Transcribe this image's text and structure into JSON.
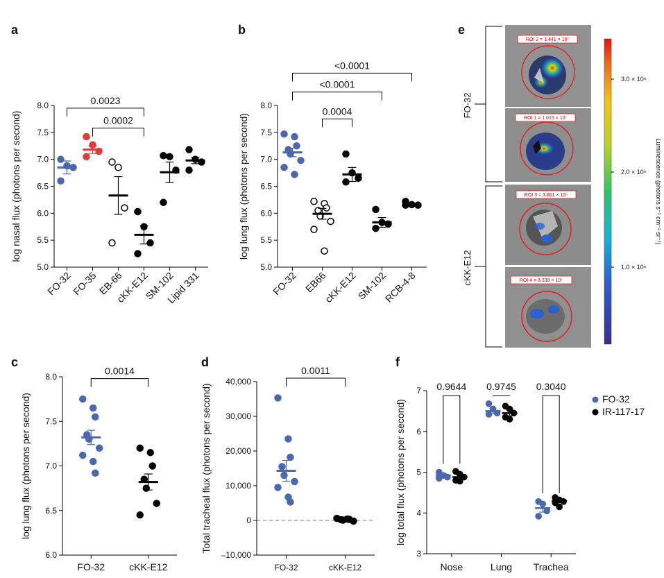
{
  "colors": {
    "blue": "#4a69ad",
    "red": "#e03a3a",
    "black": "#000000"
  },
  "panels": {
    "a": "a",
    "b": "b",
    "c": "c",
    "d": "d",
    "e": "e",
    "f": "f"
  },
  "chart_data": [
    {
      "id": "a",
      "type": "scatter-dot",
      "ylabel": "log nasal flux (photons per second)",
      "ylim": [
        5.0,
        8.0
      ],
      "yticks": [
        "5.0",
        "5.5",
        "6.0",
        "6.5",
        "7.0",
        "7.5",
        "8.0"
      ],
      "groups": [
        {
          "name": "FO-32",
          "color": "blue",
          "fill": true,
          "mean": 6.85,
          "sem": 0.12,
          "points": [
            7.0,
            6.88,
            6.85,
            6.6
          ]
        },
        {
          "name": "FO-35",
          "color": "red",
          "fill": true,
          "mean": 7.18,
          "sem": 0.07,
          "points": [
            7.42,
            7.27,
            7.15,
            7.05
          ]
        },
        {
          "name": "EB-66",
          "color": "black",
          "fill": false,
          "mean": 6.33,
          "sem": 0.35,
          "points": [
            6.95,
            6.85,
            6.1,
            5.45
          ]
        },
        {
          "name": "cKK-E12",
          "color": "black",
          "fill": true,
          "mean": 5.6,
          "sem": 0.17,
          "points": [
            6.03,
            5.75,
            5.45,
            5.25
          ]
        },
        {
          "name": "SM-102",
          "color": "black",
          "fill": true,
          "mean": 6.76,
          "sem": 0.19,
          "points": [
            7.07,
            7.05,
            6.8,
            6.2
          ]
        },
        {
          "name": "Lipid 331",
          "color": "black",
          "fill": true,
          "mean": 6.98,
          "sem": 0.06,
          "points": [
            7.18,
            7.0,
            6.95,
            6.8
          ]
        }
      ],
      "comparisons": [
        {
          "from": 0,
          "to": 3,
          "label": "0.0023",
          "y": 7.95
        },
        {
          "from": 1,
          "to": 3,
          "label": "0.0002",
          "y": 7.58
        }
      ]
    },
    {
      "id": "b",
      "type": "scatter-dot",
      "ylabel": "log lung flux (photons per second)",
      "ylim": [
        5.0,
        8.0
      ],
      "yticks": [
        "5.0",
        "5.5",
        "6.0",
        "6.5",
        "7.0",
        "7.5",
        "8.0"
      ],
      "groups": [
        {
          "name": "FO-32",
          "color": "blue",
          "fill": true,
          "mean": 7.13,
          "sem": 0.08,
          "points": [
            7.47,
            7.42,
            7.25,
            7.18,
            7.1,
            6.98,
            6.85,
            6.72
          ]
        },
        {
          "name": "EB66",
          "color": "black",
          "fill": false,
          "mean": 5.99,
          "sem": 0.1,
          "points": [
            6.22,
            6.18,
            6.1,
            6.05,
            5.95,
            5.85,
            5.7,
            5.3
          ]
        },
        {
          "name": "cKK-E12",
          "color": "black",
          "fill": true,
          "mean": 6.72,
          "sem": 0.13,
          "points": [
            7.1,
            6.75,
            6.65,
            6.58
          ]
        },
        {
          "name": "SM-102",
          "color": "black",
          "fill": true,
          "mean": 5.83,
          "sem": 0.09,
          "points": [
            6.07,
            5.83,
            5.8,
            5.72
          ]
        },
        {
          "name": "RCB-4-8",
          "color": "black",
          "fill": true,
          "mean": 6.16,
          "sem": 0.02,
          "points": [
            6.22,
            6.16,
            6.15,
            6.15
          ]
        }
      ],
      "comparisons": [
        {
          "from": 0,
          "to": 4,
          "label": "<0.0001",
          "y": 8.6
        },
        {
          "from": 0,
          "to": 3,
          "label": "<0.0001",
          "y": 8.25
        },
        {
          "from": 1,
          "to": 2,
          "label": "0.0004",
          "y": 7.75
        }
      ]
    },
    {
      "id": "c",
      "type": "scatter-dot",
      "ylabel": "log lung flux (photons per second)",
      "ylim": [
        6.0,
        8.0
      ],
      "yticks": [
        "6.0",
        "6.5",
        "7.0",
        "7.5",
        "8.0"
      ],
      "groups": [
        {
          "name": "FO-32",
          "color": "blue",
          "fill": true,
          "mean": 7.32,
          "sem": 0.08,
          "points": [
            7.75,
            7.65,
            7.55,
            7.35,
            7.3,
            7.2,
            7.12,
            7.05,
            6.92
          ]
        },
        {
          "name": "cKK-E12",
          "color": "black",
          "fill": true,
          "mean": 6.82,
          "sem": 0.09,
          "points": [
            7.2,
            7.15,
            7.0,
            6.85,
            6.75,
            6.58,
            6.45
          ]
        }
      ],
      "comparisons": [
        {
          "from": 0,
          "to": 1,
          "label": "0.0014",
          "y": 7.98
        }
      ]
    },
    {
      "id": "d",
      "type": "scatter-dot",
      "ylabel": "Total tracheal flux (photons per second)",
      "ylim": [
        -10000,
        40000
      ],
      "yticks": [
        "–10,000",
        "0",
        "10,000",
        "20,000",
        "30,000",
        "40,000"
      ],
      "zero_line": true,
      "groups": [
        {
          "name": "FO-32",
          "color": "blue",
          "fill": true,
          "mean": 14300,
          "sem": 3000,
          "points": [
            35300,
            23500,
            18200,
            15500,
            13000,
            11200,
            9500,
            6700,
            5300
          ]
        },
        {
          "name": "cKK-E12",
          "color": "black",
          "fill": true,
          "mean": 300,
          "sem": 100,
          "points": [
            600,
            400,
            300,
            200,
            100,
            -200
          ]
        }
      ],
      "comparisons": [
        {
          "from": 0,
          "to": 1,
          "label": "0.0011",
          "y": 41000
        }
      ]
    },
    {
      "id": "f",
      "type": "scatter-dot-paired",
      "ylabel": "log total flux (photons per second)",
      "ylim": [
        3,
        7
      ],
      "yticks": [
        "3",
        "4",
        "5",
        "6",
        "7"
      ],
      "categories": [
        "Nose",
        "Lung",
        "Trachea"
      ],
      "series": [
        {
          "name": "FO-32",
          "color": "blue",
          "data": [
            {
              "mean": 4.92,
              "sem": 0.05,
              "points": [
                5.0,
                4.92,
                4.88,
                4.85
              ]
            },
            {
              "mean": 6.5,
              "sem": 0.07,
              "points": [
                6.68,
                6.55,
                6.45,
                6.42
              ]
            },
            {
              "mean": 4.12,
              "sem": 0.1,
              "points": [
                4.28,
                4.22,
                4.05,
                3.92
              ]
            }
          ]
        },
        {
          "name": "IR-117-17",
          "color": "black",
          "data": [
            {
              "mean": 4.88,
              "sem": 0.05,
              "points": [
                5.02,
                4.95,
                4.88,
                4.8,
                4.78
              ]
            },
            {
              "mean": 6.45,
              "sem": 0.07,
              "points": [
                6.62,
                6.55,
                6.45,
                6.35,
                6.3
              ]
            },
            {
              "mean": 4.3,
              "sem": 0.04,
              "points": [
                4.38,
                4.32,
                4.28,
                4.25,
                4.15
              ]
            }
          ]
        }
      ],
      "comparisons": [
        {
          "cat": 0,
          "label": "0.9644",
          "y": 6.98
        },
        {
          "cat": 1,
          "label": "0.9745",
          "y": 6.98
        },
        {
          "cat": 2,
          "label": "0.3040",
          "y": 6.98
        }
      ],
      "legend": [
        "FO-32",
        "IR-117-17"
      ]
    }
  ],
  "panel_e": {
    "groups": [
      "FO-32",
      "cKK-E12"
    ],
    "rois": [
      "ROI 2 = 1.441 × 10⁷",
      "ROI 1 = 1.015 × 10⁷",
      "ROI 3 = 3.601 × 10⁵",
      "ROI 4 = 8.338 × 10⁵"
    ],
    "colorbar": {
      "label": "Luminescence (photons s⁻¹ cm⁻² sr⁻¹)",
      "ticks": [
        "3.0 × 10⁶",
        "2.0 × 10⁶",
        "1.0 × 10⁶"
      ]
    }
  }
}
